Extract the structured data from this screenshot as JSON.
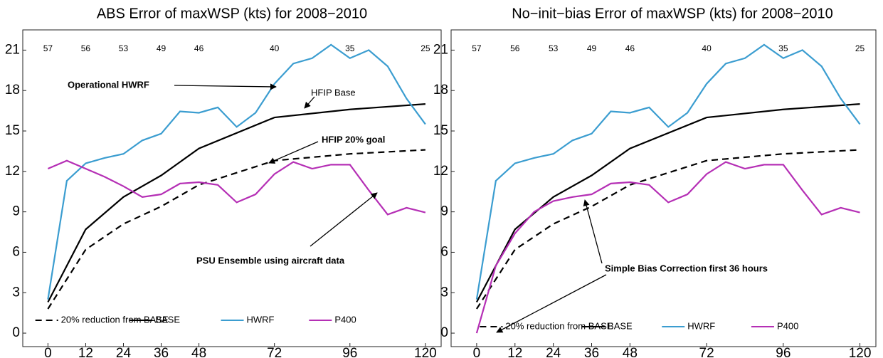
{
  "chart_data": [
    {
      "type": "line",
      "title": "ABS Error of maxWSP (kts) for 2008−2010",
      "xlim": [
        -8,
        125
      ],
      "ylim": [
        -1,
        22.5
      ],
      "xticks": [
        0,
        12,
        24,
        36,
        48,
        72,
        96,
        120
      ],
      "yticks": [
        0,
        3,
        6,
        9,
        12,
        15,
        18,
        21
      ],
      "counts": {
        "x": [
          0,
          12,
          24,
          36,
          48,
          72,
          96,
          120
        ],
        "labels": [
          "57",
          "56",
          "53",
          "49",
          "46",
          "40",
          "35",
          "25"
        ]
      },
      "annotations": [
        "Operational HWRF",
        "HFIP Base",
        "HFIP 20%  goal",
        "PSU Ensemble using aircraft data"
      ],
      "series": [
        {
          "name": "20% reduction from BASE",
          "color": "#000000",
          "style": "dashed",
          "x": [
            0,
            12,
            24,
            36,
            48,
            72,
            96,
            120
          ],
          "values": [
            1.8,
            6.2,
            8.1,
            9.4,
            11.0,
            12.8,
            13.3,
            13.6
          ]
        },
        {
          "name": "BASE",
          "color": "#000000",
          "style": "solid",
          "x": [
            0,
            12,
            24,
            36,
            48,
            72,
            96,
            120
          ],
          "values": [
            2.3,
            7.7,
            10.1,
            11.7,
            13.7,
            16.0,
            16.6,
            17.0
          ]
        },
        {
          "name": "HWRF",
          "color": "#3b9dd0",
          "style": "solid",
          "x": [
            0,
            6,
            12,
            18,
            24,
            30,
            36,
            42,
            48,
            54,
            60,
            66,
            72,
            78,
            84,
            90,
            96,
            102,
            108,
            114,
            120
          ],
          "values": [
            2.5,
            11.3,
            12.6,
            13.0,
            13.3,
            14.3,
            14.8,
            16.45,
            16.35,
            16.75,
            15.3,
            16.35,
            18.5,
            20.0,
            20.4,
            21.4,
            20.4,
            21.0,
            19.8,
            17.4,
            15.5
          ]
        },
        {
          "name": "P400",
          "color": "#b52fb5",
          "style": "solid",
          "x": [
            0,
            6,
            12,
            18,
            24,
            30,
            36,
            42,
            48,
            54,
            60,
            66,
            72,
            78,
            84,
            90,
            96,
            102,
            108,
            114,
            120
          ],
          "values": [
            12.2,
            12.8,
            12.2,
            11.6,
            10.9,
            10.1,
            10.3,
            11.1,
            11.2,
            11.0,
            9.7,
            10.3,
            11.8,
            12.7,
            12.2,
            12.5,
            12.5,
            10.6,
            8.8,
            9.3,
            8.95
          ]
        }
      ]
    },
    {
      "type": "line",
      "title": "No−init−bias Error of maxWSP (kts) for 2008−2010",
      "xlim": [
        -8,
        125
      ],
      "ylim": [
        -1,
        22.5
      ],
      "xticks": [
        0,
        12,
        24,
        36,
        48,
        72,
        96,
        120
      ],
      "yticks": [
        0,
        3,
        6,
        9,
        12,
        15,
        18,
        21
      ],
      "counts": {
        "x": [
          0,
          12,
          24,
          36,
          48,
          72,
          96,
          120
        ],
        "labels": [
          "57",
          "56",
          "53",
          "49",
          "46",
          "40",
          "35",
          "25"
        ]
      },
      "annotations": [
        "Simple Bias Correction first 36 hours"
      ],
      "series": [
        {
          "name": "20% reduction from BASE",
          "color": "#000000",
          "style": "dashed",
          "x": [
            0,
            12,
            24,
            36,
            48,
            72,
            96,
            120
          ],
          "values": [
            1.8,
            6.2,
            8.1,
            9.4,
            11.0,
            12.8,
            13.3,
            13.6
          ]
        },
        {
          "name": "BASE",
          "color": "#000000",
          "style": "solid",
          "x": [
            0,
            12,
            24,
            36,
            48,
            72,
            96,
            120
          ],
          "values": [
            2.3,
            7.7,
            10.1,
            11.7,
            13.7,
            16.0,
            16.6,
            17.0
          ]
        },
        {
          "name": "HWRF",
          "color": "#3b9dd0",
          "style": "solid",
          "x": [
            0,
            6,
            12,
            18,
            24,
            30,
            36,
            42,
            48,
            54,
            60,
            66,
            72,
            78,
            84,
            90,
            96,
            102,
            108,
            114,
            120
          ],
          "values": [
            2.5,
            11.3,
            12.6,
            13.0,
            13.3,
            14.3,
            14.8,
            16.45,
            16.35,
            16.75,
            15.3,
            16.35,
            18.5,
            20.0,
            20.4,
            21.4,
            20.4,
            21.0,
            19.8,
            17.4,
            15.5
          ]
        },
        {
          "name": "P400",
          "color": "#b52fb5",
          "style": "solid",
          "x": [
            0,
            6,
            12,
            18,
            24,
            30,
            36,
            42,
            48,
            54,
            60,
            66,
            72,
            78,
            84,
            90,
            96,
            102,
            108,
            114,
            120
          ],
          "values": [
            0,
            5.0,
            7.4,
            9.0,
            9.8,
            10.1,
            10.3,
            11.1,
            11.2,
            11.0,
            9.7,
            10.3,
            11.8,
            12.7,
            12.2,
            12.5,
            12.5,
            10.6,
            8.8,
            9.3,
            8.95
          ]
        }
      ]
    }
  ]
}
